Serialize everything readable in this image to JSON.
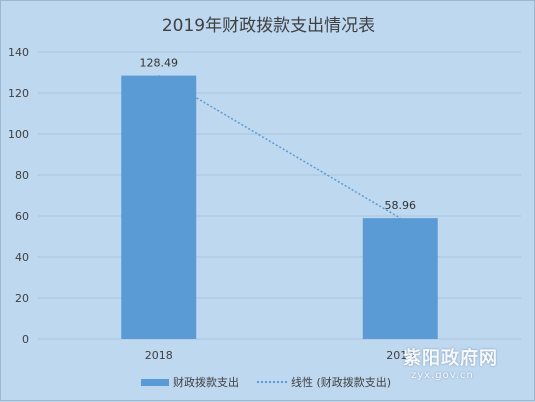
{
  "colors": {
    "bar": "#5b9bd5",
    "trend": "#5b9bd5",
    "background": "#bed8ef",
    "grid": "#a9c3db"
  },
  "chart_data": {
    "type": "bar",
    "title": "2019年财政拨款支出情况表",
    "categories": [
      "2018",
      "2019"
    ],
    "series": [
      {
        "name": "财政拨款支出",
        "values": [
          128.49,
          58.96
        ]
      }
    ],
    "trendline": {
      "name": "线性 (财政拨款支出)",
      "style": "dotted"
    },
    "ylim": [
      0,
      140
    ],
    "yticks": [
      0,
      20,
      40,
      60,
      80,
      100,
      120,
      140
    ],
    "xlabel": "",
    "ylabel": "",
    "grid": true,
    "legend": "bottom"
  },
  "watermark": {
    "main": "紫阳政府网",
    "sub": "zyx.gov.cn"
  }
}
